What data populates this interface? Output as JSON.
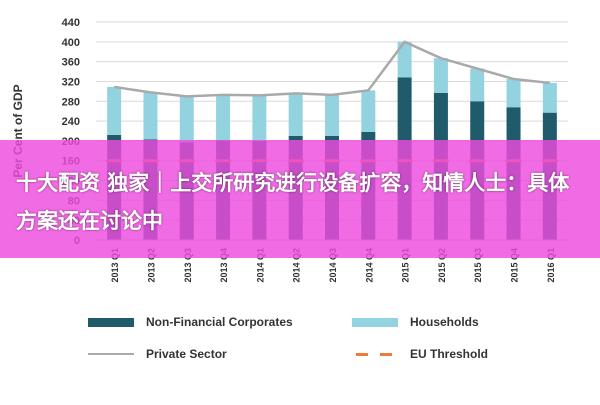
{
  "chart_data": {
    "type": "bar",
    "ylabel": "Per Cent of GDP",
    "ylim": [
      0,
      440
    ],
    "yticks": [
      0,
      40,
      80,
      120,
      160,
      200,
      240,
      280,
      320,
      360,
      400,
      440
    ],
    "grid": true,
    "categories": [
      "2013 Q1",
      "2013 Q2",
      "2013 Q3",
      "2013 Q4",
      "2014 Q1",
      "2014 Q2",
      "2014 Q3",
      "2014 Q4",
      "2015 Q1",
      "2015 Q2",
      "2015 Q3",
      "2015 Q4",
      "2016 Q1"
    ],
    "series": [
      {
        "name": "Non-Financial Corporates",
        "kind": "stacked-bar",
        "color": "#1f5b6b",
        "values": [
          212,
          203,
          197,
          201,
          200,
          210,
          210,
          218,
          328,
          297,
          280,
          268,
          257
        ]
      },
      {
        "name": "Households",
        "kind": "stacked-bar",
        "color": "#93d2df",
        "values": [
          97,
          95,
          93,
          92,
          92,
          86,
          83,
          84,
          72,
          70,
          66,
          57,
          60
        ]
      },
      {
        "name": "Private Sector",
        "kind": "line",
        "color": "#a9a9a9",
        "values": [
          309,
          298,
          290,
          293,
          292,
          296,
          293,
          302,
          400,
          367,
          346,
          325,
          317
        ]
      },
      {
        "name": "EU Threshold",
        "kind": "dashed-line",
        "color": "#f07a3a",
        "values": [
          160,
          160,
          160,
          160,
          160,
          160,
          160,
          160,
          160,
          160,
          160,
          160,
          160
        ]
      }
    ]
  },
  "legend": {
    "nfc": "Non-Financial Corporates",
    "households": "Households",
    "private": "Private Sector",
    "eu": "EU Threshold"
  },
  "overlay": {
    "headline": "十大配资 独家｜上交所研究进行设备扩容，知情人士：具体方案还在讨论中"
  }
}
